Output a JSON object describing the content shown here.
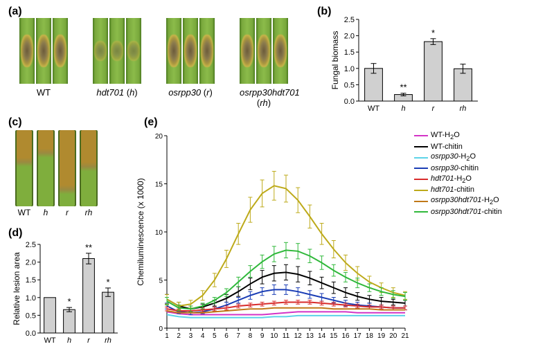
{
  "panel_labels": {
    "a": "(a)",
    "b": "(b)",
    "c": "(c)",
    "d": "(d)",
    "e": "(e)"
  },
  "panel_a": {
    "groups": [
      {
        "label_html": "WT",
        "lesion": "heavy",
        "n_leaves": 3
      },
      {
        "label_html": "<i>hdt701</i> (<i>h</i>)",
        "lesion": "light",
        "n_leaves": 3
      },
      {
        "label_html": "<i>osrpp30</i> (<i>r</i>)",
        "lesion": "heavy",
        "n_leaves": 3
      },
      {
        "label_html": "<i>osrpp30hdt701</i> (<i>rh</i>)",
        "lesion": "heavy",
        "n_leaves": 3
      }
    ]
  },
  "panel_b": {
    "type": "bar",
    "title": "Fungal biomass",
    "ylabel": "Fungal biomass",
    "ylim": [
      0,
      2.5
    ],
    "ytick_step": 0.5,
    "categories": [
      "WT",
      "h",
      "r",
      "rh"
    ],
    "cat_italic": [
      false,
      true,
      true,
      true
    ],
    "values": [
      1.0,
      0.2,
      1.82,
      0.99
    ],
    "errors": [
      0.15,
      0.04,
      0.09,
      0.14
    ],
    "stars": [
      "",
      "**",
      "*",
      ""
    ],
    "bar_color": "#d0d0d0",
    "bar_border": "#000000",
    "axis_color": "#000000",
    "label_fontsize": 12,
    "tick_fontsize": 11,
    "bar_width": 0.6
  },
  "panel_c": {
    "labels": [
      "WT",
      "h",
      "r",
      "rh"
    ],
    "italic": [
      false,
      true,
      true,
      true
    ],
    "lesion_ratio": [
      0.42,
      0.3,
      0.78,
      0.48
    ],
    "green": "#7fae3d",
    "necrotic": "#b08a2f",
    "dark_edge": "#4a6b1f"
  },
  "panel_d": {
    "type": "bar",
    "ylabel": "Relative lesion area",
    "ylim": [
      0,
      2.5
    ],
    "ytick_step": 0.5,
    "categories": [
      "WT",
      "h",
      "r",
      "rh"
    ],
    "cat_italic": [
      false,
      true,
      true,
      true
    ],
    "values": [
      1.0,
      0.66,
      2.1,
      1.15
    ],
    "errors": [
      0,
      0.06,
      0.15,
      0.12
    ],
    "stars": [
      "",
      "*",
      "**",
      "*"
    ],
    "bar_color": "#d0d0d0",
    "bar_border": "#000000",
    "axis_color": "#000000",
    "label_fontsize": 12,
    "tick_fontsize": 11,
    "bar_width": 0.6
  },
  "panel_e": {
    "type": "line",
    "ylabel": "Chemiluminescence (x 1000)",
    "xlim": [
      1,
      21
    ],
    "ylim": [
      0,
      20
    ],
    "ytick_step": 5,
    "xtick_step": 1,
    "axis_color": "#000000",
    "label_fontsize": 12,
    "tick_fontsize": 10,
    "line_width": 2,
    "error_cap": 3,
    "series": [
      {
        "name": "WT-H2O",
        "label_html": "WT-H<sub>2</sub>O",
        "color": "#d333c6",
        "y": [
          1.7,
          1.5,
          1.4,
          1.4,
          1.4,
          1.4,
          1.4,
          1.4,
          1.4,
          1.5,
          1.6,
          1.7,
          1.7,
          1.7,
          1.7,
          1.7,
          1.6,
          1.6,
          1.6,
          1.6,
          1.6
        ],
        "err": [
          0,
          0,
          0,
          0,
          0,
          0,
          0,
          0,
          0,
          0,
          0,
          0,
          0,
          0,
          0,
          0,
          0,
          0,
          0,
          0,
          0
        ]
      },
      {
        "name": "WT-chitin",
        "label_html": "WT-chitin",
        "color": "#000000",
        "y": [
          3.0,
          2.3,
          2.0,
          2.2,
          2.6,
          3.1,
          3.8,
          4.6,
          5.3,
          5.7,
          5.8,
          5.6,
          5.2,
          4.7,
          4.2,
          3.7,
          3.3,
          3.0,
          2.8,
          2.7,
          2.6
        ],
        "err": [
          0.5,
          0.4,
          0.3,
          0.3,
          0.3,
          0.4,
          0.5,
          0.6,
          0.7,
          0.8,
          0.8,
          0.8,
          0.7,
          0.6,
          0.6,
          0.5,
          0.4,
          0.4,
          0.4,
          0.3,
          0.3
        ]
      },
      {
        "name": "osrpp30-H2O",
        "label_html": "<i>osrpp30</i>-H<sub>2</sub>O",
        "color": "#5cd3e8",
        "y": [
          1.4,
          1.2,
          1.1,
          1.1,
          1.1,
          1.1,
          1.1,
          1.1,
          1.1,
          1.2,
          1.2,
          1.3,
          1.3,
          1.3,
          1.3,
          1.3,
          1.3,
          1.3,
          1.3,
          1.3,
          1.3
        ],
        "err": [
          0,
          0,
          0,
          0,
          0,
          0,
          0,
          0,
          0,
          0,
          0,
          0,
          0,
          0,
          0,
          0,
          0,
          0,
          0,
          0,
          0
        ]
      },
      {
        "name": "osrpp30-chitin",
        "label_html": "<i>osrpp30</i>-chitin",
        "color": "#1a3db5",
        "y": [
          2.3,
          1.7,
          1.6,
          1.7,
          2.0,
          2.4,
          2.9,
          3.4,
          3.8,
          4.0,
          4.0,
          3.8,
          3.5,
          3.2,
          2.9,
          2.6,
          2.4,
          2.3,
          2.2,
          2.1,
          2.1
        ],
        "err": [
          0.3,
          0.2,
          0.2,
          0.2,
          0.2,
          0.3,
          0.3,
          0.4,
          0.4,
          0.5,
          0.5,
          0.4,
          0.4,
          0.4,
          0.3,
          0.3,
          0.3,
          0.3,
          0.2,
          0.2,
          0.2
        ]
      },
      {
        "name": "hdt701-H2O",
        "label_html": "<i>hdt701</i>-H<sub>2</sub>O",
        "color": "#d82a2a",
        "y": [
          2.0,
          1.8,
          1.8,
          1.9,
          2.0,
          2.1,
          2.3,
          2.4,
          2.5,
          2.6,
          2.7,
          2.7,
          2.7,
          2.6,
          2.5,
          2.4,
          2.3,
          2.2,
          2.2,
          2.1,
          2.1
        ],
        "err": [
          0.2,
          0.2,
          0.2,
          0.2,
          0.2,
          0.2,
          0.2,
          0.2,
          0.2,
          0.2,
          0.2,
          0.2,
          0.2,
          0.2,
          0.2,
          0.2,
          0.2,
          0.2,
          0.2,
          0.2,
          0.2
        ]
      },
      {
        "name": "hdt701-chitin",
        "label_html": "<i>hdt701</i>-chitin",
        "color": "#bdaa1a",
        "y": [
          3.0,
          2.3,
          2.5,
          3.4,
          5.0,
          7.2,
          9.8,
          12.3,
          14.0,
          14.8,
          14.5,
          13.3,
          11.6,
          9.8,
          8.2,
          6.8,
          5.7,
          4.8,
          4.2,
          3.7,
          3.4
        ],
        "err": [
          0.5,
          0.4,
          0.4,
          0.5,
          0.7,
          0.9,
          1.1,
          1.3,
          1.4,
          1.5,
          1.4,
          1.3,
          1.2,
          1.1,
          0.9,
          0.8,
          0.7,
          0.6,
          0.5,
          0.5,
          0.4
        ]
      },
      {
        "name": "osrpp30hdt701-H2O",
        "label_html": "<i>osrpp30hdt701</i>-H<sub>2</sub>O",
        "color": "#c07818",
        "y": [
          1.8,
          1.6,
          1.6,
          1.6,
          1.7,
          1.8,
          1.9,
          2.0,
          2.0,
          2.1,
          2.1,
          2.1,
          2.1,
          2.1,
          2.0,
          2.0,
          2.0,
          2.0,
          1.9,
          1.9,
          1.9
        ],
        "err": [
          0,
          0,
          0,
          0,
          0,
          0,
          0,
          0,
          0,
          0,
          0,
          0,
          0,
          0,
          0,
          0,
          0,
          0,
          0,
          0,
          0
        ]
      },
      {
        "name": "osrpp30hdt701-chitin",
        "label_html": "<i>osrpp30hdt701</i>-chitin",
        "color": "#2fb83a",
        "y": [
          2.8,
          2.1,
          2.0,
          2.3,
          2.9,
          3.7,
          4.8,
          5.9,
          6.9,
          7.7,
          8.1,
          8.0,
          7.5,
          6.8,
          6.0,
          5.3,
          4.7,
          4.2,
          3.8,
          3.5,
          3.3
        ],
        "err": [
          0.4,
          0.3,
          0.3,
          0.3,
          0.3,
          0.4,
          0.5,
          0.6,
          0.7,
          0.8,
          0.8,
          0.8,
          0.7,
          0.7,
          0.6,
          0.5,
          0.5,
          0.4,
          0.4,
          0.4,
          0.4
        ]
      }
    ]
  }
}
